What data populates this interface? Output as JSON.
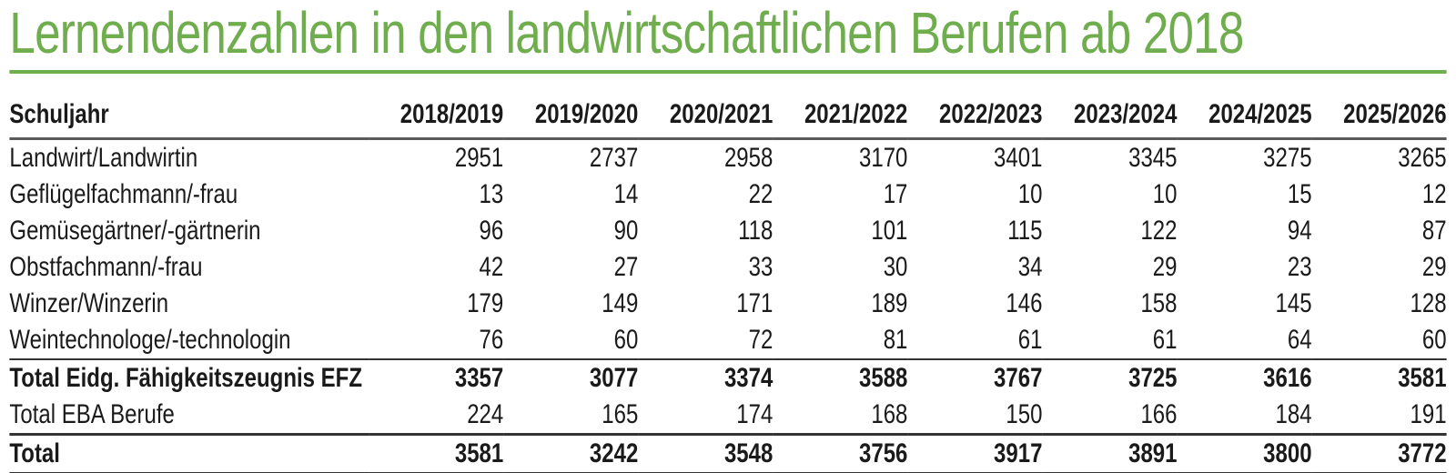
{
  "page": {
    "title": "Lernendenzahlen in den landwirtschaftlichen Berufen ab 2018"
  },
  "colors": {
    "accent_green": "#6fad4e",
    "rule_gray": "#5a5a5a",
    "rule_dark": "#333333",
    "text_dark": "#1a1a1a"
  },
  "chart_data": {
    "type": "table",
    "title": "Lernendenzahlen in den landwirtschaftlichen Berufen ab 2018",
    "columns": [
      "Schuljahr",
      "2018/2019",
      "2019/2020",
      "2020/2021",
      "2021/2022",
      "2022/2023",
      "2023/2024",
      "2024/2025",
      "2025/2026"
    ],
    "rows": [
      {
        "label": "Landwirt/Landwirtin",
        "values": [
          2951,
          2737,
          2958,
          3170,
          3401,
          3345,
          3275,
          3265
        ],
        "bold": false,
        "rule_above": false,
        "rule_below": false
      },
      {
        "label": "Geflügelfachmann/-frau",
        "values": [
          13,
          14,
          22,
          17,
          10,
          10,
          15,
          12
        ],
        "bold": false,
        "rule_above": false,
        "rule_below": false
      },
      {
        "label": "Gemüsegärtner/-gärtnerin",
        "values": [
          96,
          90,
          118,
          101,
          115,
          122,
          94,
          87
        ],
        "bold": false,
        "rule_above": false,
        "rule_below": false
      },
      {
        "label": "Obstfachmann/-frau",
        "values": [
          42,
          27,
          33,
          30,
          34,
          29,
          23,
          29
        ],
        "bold": false,
        "rule_above": false,
        "rule_below": false
      },
      {
        "label": "Winzer/Winzerin",
        "values": [
          179,
          149,
          171,
          189,
          146,
          158,
          145,
          128
        ],
        "bold": false,
        "rule_above": false,
        "rule_below": false
      },
      {
        "label": "Weintechnologe/-technologin",
        "values": [
          76,
          60,
          72,
          81,
          61,
          61,
          64,
          60
        ],
        "bold": false,
        "rule_above": false,
        "rule_below": false
      },
      {
        "label": "Total Eidg. Fähigkeitszeugnis EFZ",
        "values": [
          3357,
          3077,
          3374,
          3588,
          3767,
          3725,
          3616,
          3581
        ],
        "bold": true,
        "rule_above": true,
        "rule_below": false
      },
      {
        "label": "Total EBA Berufe",
        "values": [
          224,
          165,
          174,
          168,
          150,
          166,
          184,
          191
        ],
        "bold": false,
        "rule_above": false,
        "rule_below": false
      },
      {
        "label": "Total",
        "values": [
          3581,
          3242,
          3548,
          3756,
          3917,
          3891,
          3800,
          3772
        ],
        "bold": true,
        "rule_above": true,
        "rule_below": true,
        "heavy": true
      }
    ]
  }
}
